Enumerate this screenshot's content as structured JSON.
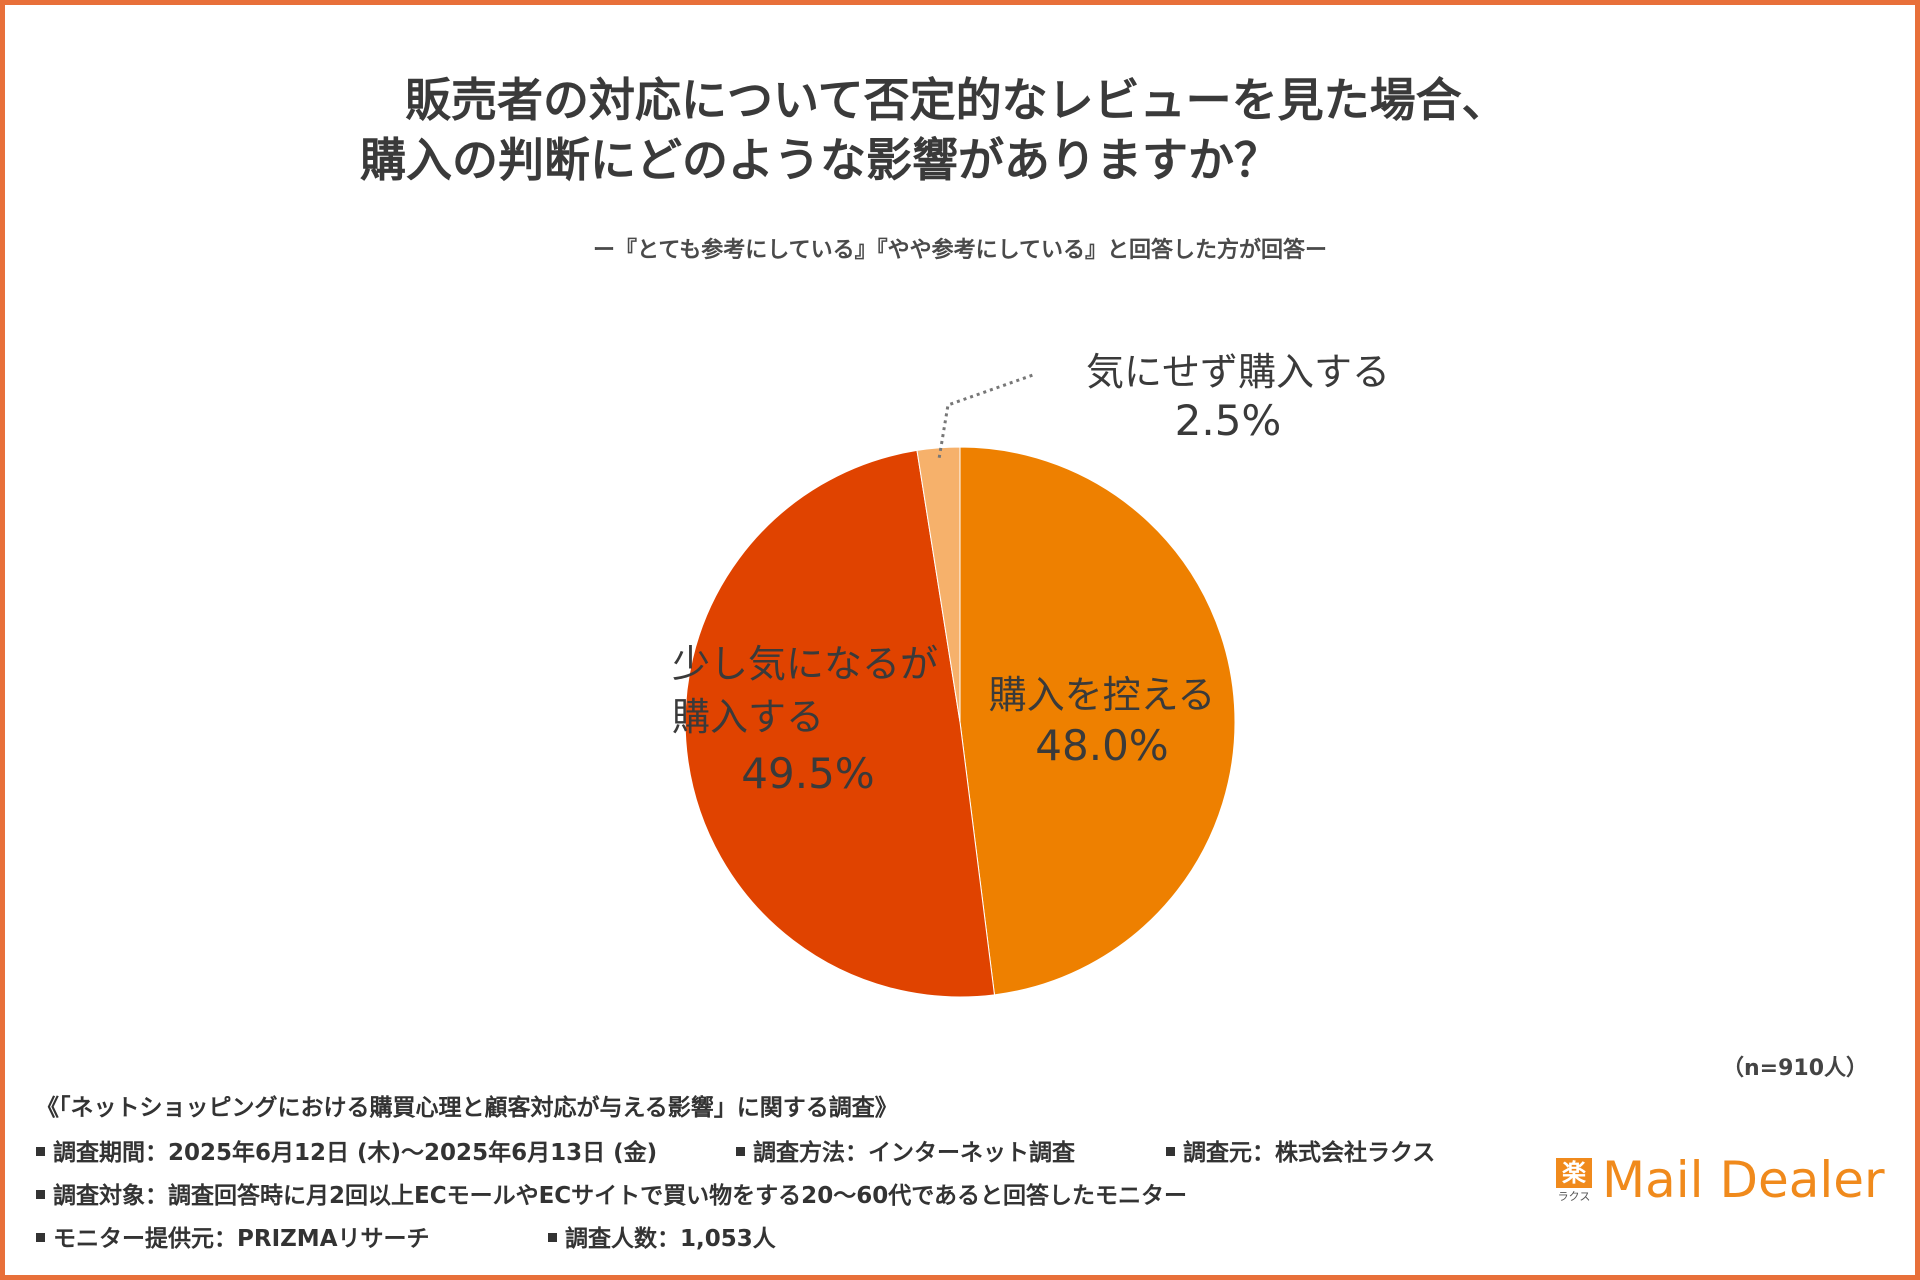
{
  "title_line1": "販売者の対応について否定的なレビューを見た場合、",
  "title_line2": "購入の判断にどのような影響がありますか？",
  "subtitle": "ー『とても参考にしている』『やや参考にしている』と回答した方が回答ー",
  "chart_data": {
    "type": "pie",
    "title": "販売者の対応について否定的なレビューを見た場合、購入の判断にどのような影響がありますか？",
    "start_angle_deg": 0,
    "direction": "clockwise",
    "slices": [
      {
        "label": "購入を控える",
        "value": 48.0,
        "display": "48.0%",
        "color": "#ee8000"
      },
      {
        "label": "少し気になるが購入する",
        "label_lines": [
          "少し気になるが",
          "購入する"
        ],
        "value": 49.5,
        "display": "49.5%",
        "color": "#e04300"
      },
      {
        "label": "気にせず購入する",
        "value": 2.5,
        "display": "2.5%",
        "color": "#f6b16b"
      }
    ],
    "leader_line_color": "#777777"
  },
  "sample_note": "（n=910人）",
  "footer": {
    "survey_name": "《「ネットショッピングにおける購買心理と顧客対応が与える影響」に関する調査》",
    "items": [
      "調査期間：2025年6月12日 (木)～2025年6月13日 (金)",
      "調査方法：インターネット調査",
      "調査元：株式会社ラクス",
      "調査対象：調査回答時に月2回以上ECモールやECサイトで買い物をする20～60代であると回答したモニター",
      "モニター提供元：PRIZMAリサーチ",
      "調査人数：1,053人"
    ]
  },
  "logo": {
    "mark": "楽",
    "mark_kana": "ラクス",
    "brand": "Mail Dealer",
    "color": "#f08a1c"
  },
  "colors": {
    "border": "#e8703a",
    "text": "#333333"
  }
}
